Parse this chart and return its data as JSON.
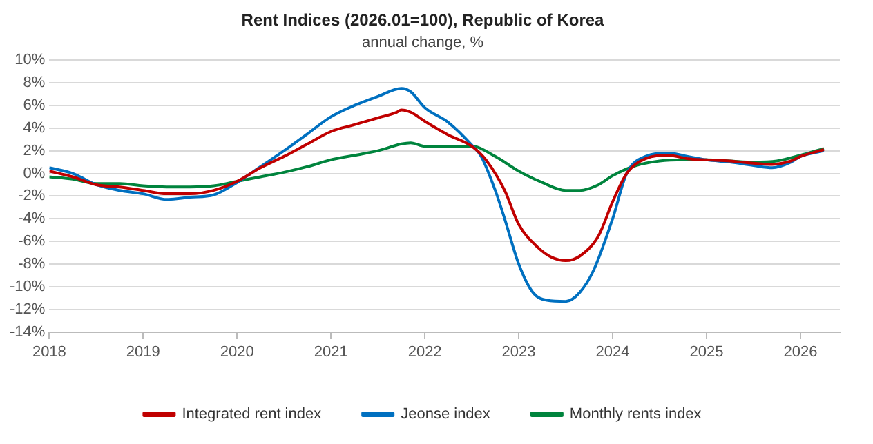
{
  "chart_data": {
    "type": "line",
    "title": "Rent Indices (2026.01=100), Republic of Korea",
    "subtitle": "annual change, %",
    "xlim": [
      2018,
      2026.42
    ],
    "xticks": [
      2018,
      2019,
      2020,
      2021,
      2022,
      2023,
      2024,
      2025,
      2026
    ],
    "ylim": [
      -14,
      10
    ],
    "yticks": [
      {
        "value": -14,
        "label": "-14%"
      },
      {
        "value": -12,
        "label": "-12%"
      },
      {
        "value": -10,
        "label": "-10%"
      },
      {
        "value": -8,
        "label": "-8%"
      },
      {
        "value": -6,
        "label": "-6%"
      },
      {
        "value": -4,
        "label": "-4%"
      },
      {
        "value": -2,
        "label": "-2%"
      },
      {
        "value": 0,
        "label": "0%"
      },
      {
        "value": 2,
        "label": "2%"
      },
      {
        "value": 4,
        "label": "4%"
      },
      {
        "value": 6,
        "label": "6%"
      },
      {
        "value": 8,
        "label": "8%"
      },
      {
        "value": 10,
        "label": "10%"
      }
    ],
    "grid": "y",
    "legend": "bottom",
    "marker": "none",
    "line_style": "solid",
    "series": [
      {
        "name": "Integrated rent index",
        "color": "#c00000",
        "x": [
          2018.0,
          2018.25,
          2018.5,
          2018.75,
          2019.0,
          2019.25,
          2019.5,
          2019.75,
          2020.0,
          2020.25,
          2020.5,
          2020.75,
          2021.0,
          2021.25,
          2021.5,
          2021.7,
          2021.75,
          2021.85,
          2022.0,
          2022.25,
          2022.5,
          2022.65,
          2022.85,
          2023.0,
          2023.2,
          2023.35,
          2023.5,
          2023.65,
          2023.85,
          2024.0,
          2024.15,
          2024.35,
          2024.6,
          2024.8,
          2025.0,
          2025.25,
          2025.5,
          2025.7,
          2025.9,
          2026.0,
          2026.25
        ],
        "values": [
          0.2,
          -0.3,
          -1.0,
          -1.2,
          -1.5,
          -1.8,
          -1.8,
          -1.5,
          -0.7,
          0.5,
          1.5,
          2.6,
          3.7,
          4.3,
          4.9,
          5.4,
          5.6,
          5.4,
          4.6,
          3.4,
          2.4,
          1.2,
          -1.5,
          -4.5,
          -6.5,
          -7.4,
          -7.7,
          -7.3,
          -5.5,
          -2.5,
          0,
          1.3,
          1.6,
          1.3,
          1.2,
          1.1,
          0.9,
          0.8,
          1.1,
          1.5,
          2.1
        ]
      },
      {
        "name": "Jeonse index",
        "color": "#0070c0",
        "x": [
          2018.0,
          2018.25,
          2018.5,
          2018.75,
          2019.0,
          2019.25,
          2019.5,
          2019.75,
          2020.0,
          2020.25,
          2020.5,
          2020.75,
          2021.0,
          2021.25,
          2021.5,
          2021.75,
          2021.85,
          2022.0,
          2022.25,
          2022.5,
          2022.6,
          2022.75,
          2022.85,
          2023.0,
          2023.15,
          2023.3,
          2023.5,
          2023.65,
          2023.8,
          2024.0,
          2024.15,
          2024.35,
          2024.6,
          2024.8,
          2025.0,
          2025.25,
          2025.5,
          2025.7,
          2025.9,
          2026.0,
          2026.25
        ],
        "values": [
          0.5,
          0,
          -1.0,
          -1.5,
          -1.8,
          -2.3,
          -2.1,
          -1.9,
          -0.8,
          0.6,
          2.0,
          3.5,
          5.0,
          6.0,
          6.8,
          7.5,
          7.2,
          5.8,
          4.5,
          2.5,
          1.5,
          -1.5,
          -4,
          -8,
          -10.5,
          -11.2,
          -11.3,
          -10.5,
          -8.5,
          -4,
          0,
          1.5,
          1.8,
          1.5,
          1.2,
          1.0,
          0.7,
          0.5,
          1.0,
          1.5,
          2.0
        ]
      },
      {
        "name": "Monthly rents index",
        "color": "#00843d",
        "x": [
          2018.0,
          2018.25,
          2018.5,
          2018.75,
          2019.0,
          2019.25,
          2019.5,
          2019.75,
          2020.0,
          2020.25,
          2020.5,
          2020.75,
          2021.0,
          2021.25,
          2021.5,
          2021.75,
          2021.85,
          2022.0,
          2022.25,
          2022.5,
          2022.75,
          2023.0,
          2023.25,
          2023.5,
          2023.65,
          2023.85,
          2024.0,
          2024.25,
          2024.5,
          2024.75,
          2025.0,
          2025.25,
          2025.5,
          2025.75,
          2026.0,
          2026.25
        ],
        "values": [
          -0.3,
          -0.5,
          -0.9,
          -0.9,
          -1.1,
          -1.2,
          -1.2,
          -1.1,
          -0.7,
          -0.3,
          0.1,
          0.6,
          1.2,
          1.6,
          2.0,
          2.6,
          2.7,
          2.4,
          2.4,
          2.4,
          1.5,
          0.2,
          -0.8,
          -1.5,
          -1.5,
          -1.0,
          -0.2,
          0.7,
          1.1,
          1.2,
          1.2,
          1.1,
          1.0,
          1.1,
          1.6,
          2.2
        ]
      }
    ]
  }
}
